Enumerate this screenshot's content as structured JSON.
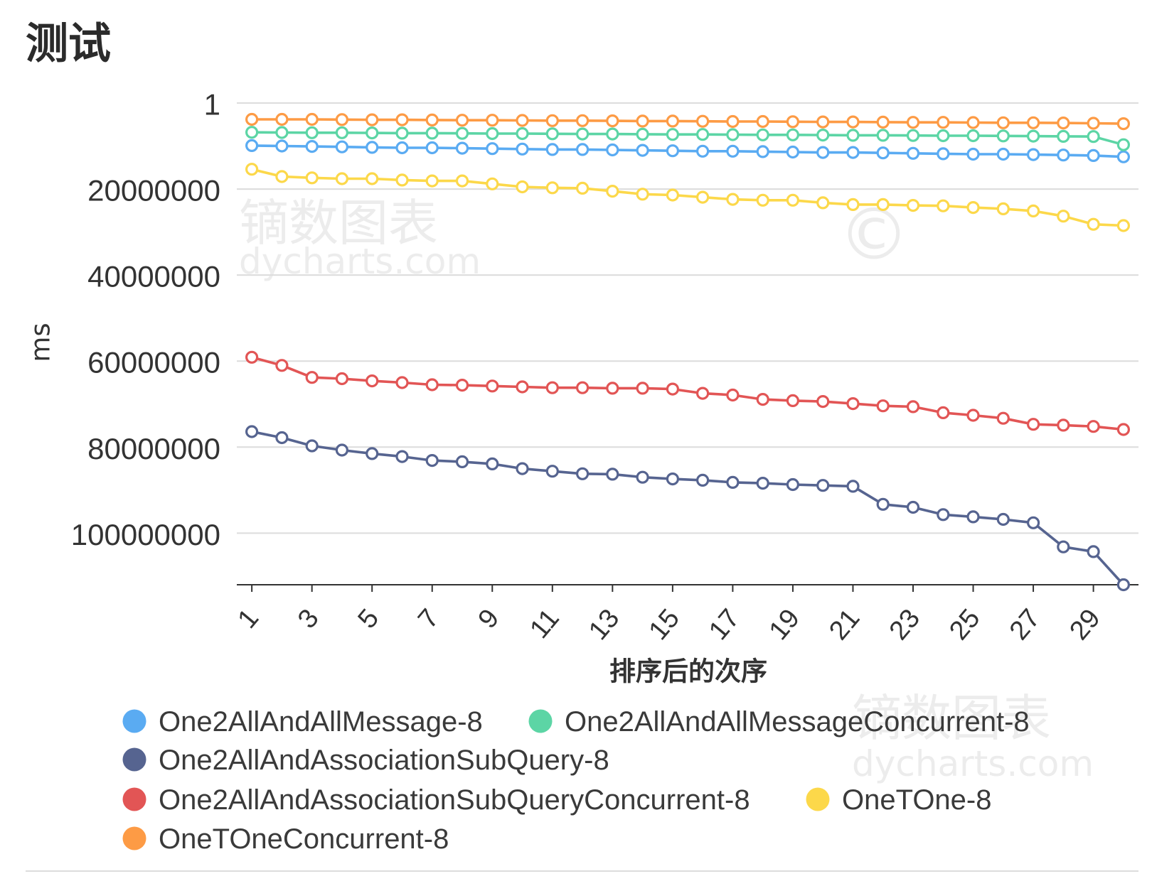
{
  "watermark": {
    "brand": "镝数图表",
    "url": "dycharts.com",
    "symbol": "©"
  },
  "chart_data": {
    "type": "line",
    "title": "测试",
    "xlabel": "排序后的次序",
    "ylabel": "ms",
    "x": [
      1,
      2,
      3,
      4,
      5,
      6,
      7,
      8,
      9,
      10,
      11,
      12,
      13,
      14,
      15,
      16,
      17,
      18,
      19,
      20,
      21,
      22,
      23,
      24,
      25,
      26,
      27,
      28,
      29,
      30
    ],
    "x_tick_labels": [
      "1",
      "3",
      "5",
      "7",
      "9",
      "11",
      "13",
      "15",
      "17",
      "19",
      "21",
      "23",
      "25",
      "27",
      "29"
    ],
    "y_ticks": [
      1,
      20000000,
      40000000,
      60000000,
      80000000,
      100000000
    ],
    "y_tick_labels": [
      "1",
      "20000000",
      "40000000",
      "60000000",
      "80000000",
      "100000000"
    ],
    "ylim": [
      1,
      112000000
    ],
    "y_inverted": true,
    "grid": true,
    "markers": "hollow-circle",
    "legend_position": "bottom",
    "series": [
      {
        "name": "One2AllAndAllMessage-8",
        "color": "#5aabf2",
        "values": [
          9900000,
          10000000,
          10100000,
          10200000,
          10300000,
          10400000,
          10400000,
          10500000,
          10600000,
          10700000,
          10800000,
          10800000,
          10900000,
          11000000,
          11100000,
          11200000,
          11200000,
          11300000,
          11400000,
          11500000,
          11500000,
          11600000,
          11700000,
          11800000,
          11900000,
          11900000,
          12000000,
          12100000,
          12200000,
          12500000
        ]
      },
      {
        "name": "One2AllAndAllMessageConcurrent-8",
        "color": "#5cd5a5",
        "values": [
          6800000,
          6850000,
          6900000,
          6900000,
          6950000,
          7000000,
          7000000,
          7050000,
          7100000,
          7100000,
          7150000,
          7200000,
          7200000,
          7250000,
          7300000,
          7300000,
          7350000,
          7400000,
          7400000,
          7450000,
          7500000,
          7500000,
          7550000,
          7600000,
          7600000,
          7650000,
          7700000,
          7750000,
          7800000,
          9700000
        ]
      },
      {
        "name": "One2AllAndAssociationSubQuery-8",
        "color": "#566490",
        "values": [
          76400000,
          77800000,
          79700000,
          80700000,
          81500000,
          82200000,
          83100000,
          83400000,
          83900000,
          85000000,
          85600000,
          86200000,
          86300000,
          87000000,
          87400000,
          87700000,
          88200000,
          88400000,
          88700000,
          88900000,
          89100000,
          93300000,
          94000000,
          95700000,
          96200000,
          96800000,
          97600000,
          103200000,
          104300000,
          112000000
        ]
      },
      {
        "name": "One2AllAndAssociationSubQueryConcurrent-8",
        "color": "#e25555",
        "values": [
          59100000,
          61000000,
          63800000,
          64100000,
          64600000,
          65000000,
          65500000,
          65600000,
          65800000,
          66000000,
          66200000,
          66200000,
          66300000,
          66300000,
          66500000,
          67500000,
          67900000,
          68900000,
          69200000,
          69400000,
          69900000,
          70400000,
          70600000,
          72000000,
          72600000,
          73300000,
          74700000,
          74900000,
          75200000,
          75900000
        ]
      },
      {
        "name": "OneTOne-8",
        "color": "#fcd84a",
        "values": [
          15400000,
          17100000,
          17400000,
          17600000,
          17600000,
          17900000,
          18100000,
          18100000,
          18800000,
          19500000,
          19700000,
          19800000,
          20500000,
          21200000,
          21400000,
          21900000,
          22400000,
          22600000,
          22600000,
          23200000,
          23600000,
          23600000,
          23800000,
          23900000,
          24300000,
          24600000,
          25100000,
          26300000,
          28200000,
          28500000
        ]
      },
      {
        "name": "OneTOneConcurrent-8",
        "color": "#fd9b45",
        "values": [
          3800000,
          3800000,
          3800000,
          3850000,
          3900000,
          3900000,
          3950000,
          4000000,
          4000000,
          4050000,
          4100000,
          4100000,
          4150000,
          4200000,
          4200000,
          4250000,
          4300000,
          4300000,
          4350000,
          4400000,
          4400000,
          4450000,
          4500000,
          4500000,
          4550000,
          4600000,
          4600000,
          4650000,
          4700000,
          4800000
        ]
      }
    ]
  }
}
